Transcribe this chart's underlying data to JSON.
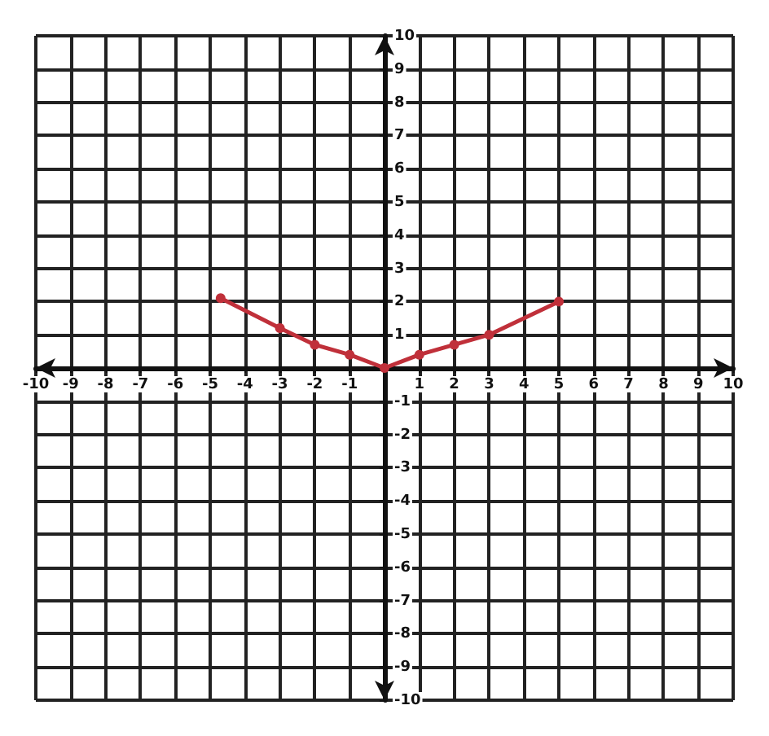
{
  "chart_data": {
    "type": "line",
    "x": [
      -4.7,
      -3,
      -2,
      -1,
      0,
      1,
      2,
      3,
      5
    ],
    "series": [
      {
        "color": "#c0303a",
        "values": [
          2.1,
          1.2,
          0.7,
          0.4,
          0,
          0.4,
          0.7,
          1,
          2
        ]
      }
    ],
    "xlim": [
      -10,
      10
    ],
    "ylim": [
      -10,
      10
    ],
    "xticks": [
      -10,
      -9,
      -8,
      -7,
      -6,
      -5,
      -4,
      -3,
      -2,
      -1,
      1,
      2,
      3,
      4,
      5,
      6,
      7,
      8,
      9,
      10
    ],
    "yticks": [
      -10,
      -9,
      -8,
      -7,
      -6,
      -5,
      -4,
      -3,
      -2,
      -1,
      {
        "value": 0,
        "label": null
      },
      1,
      2,
      3,
      4,
      5,
      6,
      7,
      8,
      9,
      10
    ],
    "grid": true,
    "marker": "circle",
    "line_style": "solid"
  }
}
